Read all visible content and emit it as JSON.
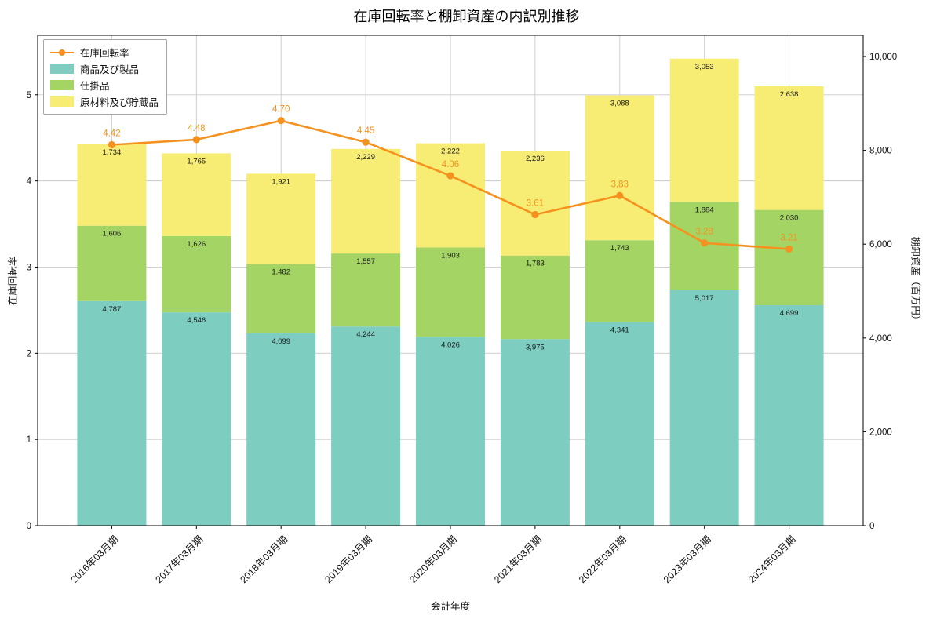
{
  "title": "在庫回転率と棚卸資産の内訳別推移",
  "chart_data": {
    "type": "bar",
    "stacked": true,
    "grid": true,
    "legend_position": "upper-left",
    "categories": [
      "2016年03月期",
      "2017年03月期",
      "2018年03月期",
      "2019年03月期",
      "2020年03月期",
      "2021年03月期",
      "2022年03月期",
      "2023年03月期",
      "2024年03月期"
    ],
    "bar_series": [
      {
        "name": "商品及び製品",
        "color": "#7dcdc1",
        "values": [
          4787,
          4546,
          4099,
          4244,
          4026,
          3975,
          4341,
          5017,
          4699
        ]
      },
      {
        "name": "仕掛品",
        "color": "#a4d464",
        "values": [
          1606,
          1626,
          1482,
          1557,
          1903,
          1783,
          1743,
          1884,
          2030
        ]
      },
      {
        "name": "原材料及び貯蔵品",
        "color": "#f7ed74",
        "values": [
          1734,
          1765,
          1921,
          2229,
          2222,
          2236,
          3088,
          3053,
          2638
        ]
      }
    ],
    "line_series": {
      "name": "在庫回転率",
      "color": "#f5911e",
      "values": [
        4.42,
        4.48,
        4.7,
        4.45,
        4.06,
        3.61,
        3.83,
        3.28,
        3.21
      ]
    },
    "left_axis": {
      "label": "在庫回転率",
      "ticks": [
        0,
        1,
        2,
        3,
        4,
        5
      ],
      "max": 5.69
    },
    "right_axis": {
      "label": "棚卸資産（百万円）",
      "ticks": [
        "0",
        "2,000",
        "4,000",
        "6,000",
        "8,000",
        "10,000"
      ],
      "tick_values": [
        0,
        2000,
        4000,
        6000,
        8000,
        10000
      ],
      "max": 10452
    },
    "xlabel": "会計年度",
    "colors": {
      "grid": "#c9c9c9",
      "spine": "#000000",
      "bar_label": "#1a1a1a"
    }
  }
}
